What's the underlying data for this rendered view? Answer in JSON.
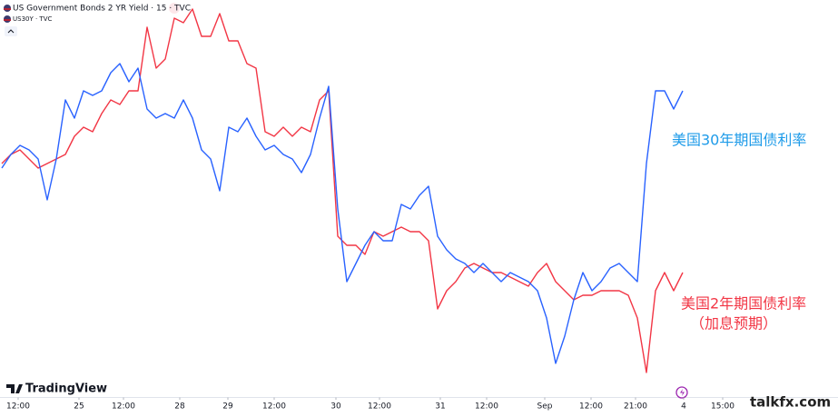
{
  "chart_data": {
    "type": "line",
    "legend": [
      "US Government Bonds 2 YR Yield · 15 · TVC",
      "US30Y · TVC"
    ],
    "series": [
      {
        "name": "US Government Bonds 2 YR Yield · 15 · TVC",
        "color": "#f23645",
        "values": [
          260,
          270,
          275,
          265,
          255,
          260,
          265,
          270,
          290,
          300,
          295,
          315,
          330,
          325,
          340,
          340,
          410,
          365,
          375,
          420,
          415,
          430,
          400,
          400,
          425,
          395,
          395,
          370,
          365,
          295,
          290,
          300,
          290,
          300,
          295,
          330,
          340,
          180,
          170,
          170,
          160,
          185,
          180,
          185,
          190,
          185,
          185,
          175,
          100,
          120,
          130,
          145,
          150,
          145,
          140,
          140,
          135,
          130,
          125,
          140,
          150,
          130,
          120,
          110,
          115,
          115,
          120,
          120,
          120,
          115,
          90,
          30,
          120,
          140,
          120,
          140
        ]
      },
      {
        "name": "US30Y · TVC",
        "color": "#2962ff",
        "values": [
          255,
          270,
          280,
          275,
          265,
          220,
          265,
          330,
          310,
          340,
          335,
          340,
          360,
          370,
          350,
          365,
          320,
          310,
          315,
          310,
          330,
          310,
          275,
          265,
          230,
          300,
          295,
          310,
          290,
          275,
          280,
          270,
          265,
          250,
          270,
          310,
          345,
          210,
          130,
          150,
          170,
          185,
          175,
          175,
          215,
          210,
          225,
          235,
          180,
          165,
          155,
          150,
          140,
          150,
          140,
          130,
          140,
          135,
          130,
          120,
          90,
          40,
          70,
          110,
          140,
          120,
          130,
          145,
          150,
          140,
          130,
          260,
          340,
          340,
          320,
          340
        ]
      }
    ],
    "annotations": [
      {
        "text": "美国30年期国债利率",
        "color": "#1e9be9"
      },
      {
        "text": "美国2年期国债利率",
        "color": "#f23645"
      },
      {
        "text": "（加息预期）",
        "color": "#f23645"
      }
    ],
    "xlim": [
      -0.2,
      92.1
    ],
    "xticks": [
      {
        "value": 1.8,
        "label": "12:00"
      },
      {
        "value": 8.5,
        "label": "25"
      },
      {
        "value": 13.4,
        "label": "12:00"
      },
      {
        "value": 19.6,
        "label": "28"
      },
      {
        "value": 24.9,
        "label": "29"
      },
      {
        "value": 30,
        "label": "12:00"
      },
      {
        "value": 36.8,
        "label": "30"
      },
      {
        "value": 41.6,
        "label": "12:00"
      },
      {
        "value": 48.3,
        "label": "31"
      },
      {
        "value": 53.4,
        "label": "12:00"
      },
      {
        "value": 59.8,
        "label": "Sep"
      },
      {
        "value": 64.9,
        "label": "12:00"
      },
      {
        "value": 69.8,
        "label": "21:00"
      },
      {
        "value": 75.1,
        "label": "4"
      },
      {
        "value": 79.4,
        "label": "15:00"
      }
    ],
    "ylim": [
      0,
      440
    ],
    "brand": "TradingView",
    "watermark": "talkfx.com"
  }
}
